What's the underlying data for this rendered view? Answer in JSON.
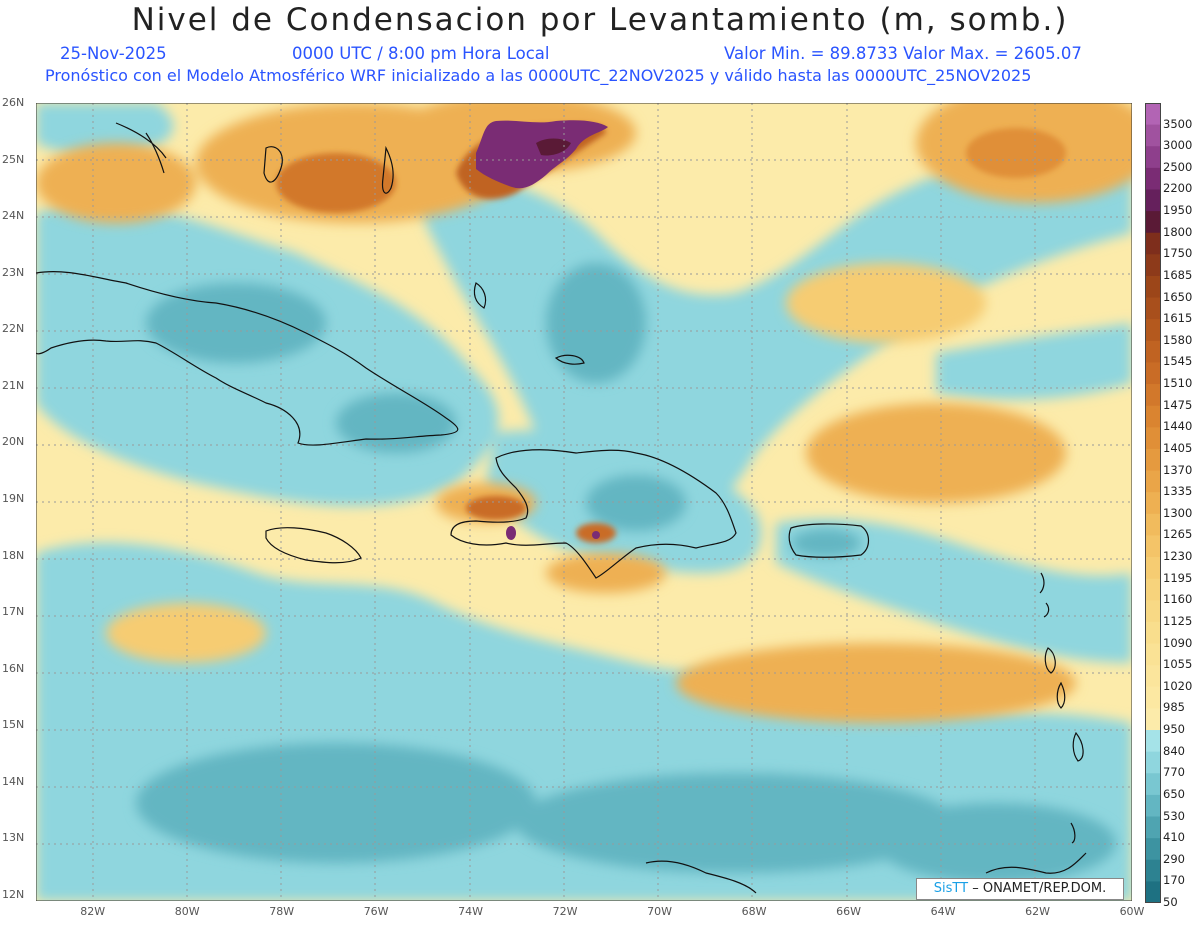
{
  "header": {
    "title": "Nivel de Condensacion por Levantamiento (m, somb.)",
    "date": "25-Nov-2025",
    "time": "0000 UTC / 8:00 pm Hora Local",
    "min_max": "Valor Min. = 89.8733   Valor Max. = 2605.07",
    "forecast": "Pronóstico con el Modelo Atmosférico WRF inicializado a las 0000UTC_22NOV2025 y válido hasta las  0000UTC_25NOV2025"
  },
  "map": {
    "lat_labels": [
      "26N",
      "25N",
      "24N",
      "23N",
      "22N",
      "21N",
      "20N",
      "19N",
      "18N",
      "17N",
      "16N",
      "15N",
      "14N",
      "13N",
      "12N"
    ],
    "lon_labels": [
      "82W",
      "80W",
      "78W",
      "76W",
      "74W",
      "72W",
      "70W",
      "68W",
      "66W",
      "64W",
      "62W",
      "60W"
    ],
    "lat_range": [
      12,
      26
    ],
    "lon_range": [
      -83.2,
      -60
    ]
  },
  "colorbar": {
    "levels": [
      "3500",
      "3000",
      "2500",
      "2200",
      "1950",
      "1800",
      "1750",
      "1685",
      "1650",
      "1615",
      "1580",
      "1545",
      "1510",
      "1475",
      "1440",
      "1405",
      "1370",
      "1335",
      "1300",
      "1265",
      "1230",
      "1195",
      "1160",
      "1125",
      "1090",
      "1055",
      "1020",
      "985",
      "950",
      "840",
      "770",
      "650",
      "530",
      "410",
      "290",
      "170",
      "50"
    ],
    "colors": [
      "#b264b4",
      "#a0529f",
      "#8e3f8c",
      "#7a2c74",
      "#65205c",
      "#5a1a36",
      "#7e2e1c",
      "#8d3a1a",
      "#9c4619",
      "#a84f1c",
      "#b4591e",
      "#c06322",
      "#c96c26",
      "#d2782b",
      "#da8430",
      "#e08f37",
      "#e59a3f",
      "#eaa548",
      "#eeb052",
      "#f1bb5d",
      "#f4c468",
      "#f6cc72",
      "#f7d37c",
      "#f8d985",
      "#f9de8d",
      "#fae295",
      "#fbe59c",
      "#fce8a2",
      "#fcebaa",
      "#a5e3e8",
      "#8fd6de",
      "#79c7d1",
      "#63b6c2",
      "#4fa4b1",
      "#3d93a1",
      "#2d8291",
      "#1e7182"
    ]
  },
  "credit": {
    "sis": "SisTT",
    "org": "– ONAMET/REP.DOM."
  },
  "colors": {
    "sea_base": "#fcebaa",
    "low": "#8fd6de",
    "mid": "#63b6c2",
    "high": "#eeb052",
    "higher": "#d2782b",
    "peak": "#7a2c74",
    "coast": "#111111",
    "subtitle": "#2a54ff"
  }
}
